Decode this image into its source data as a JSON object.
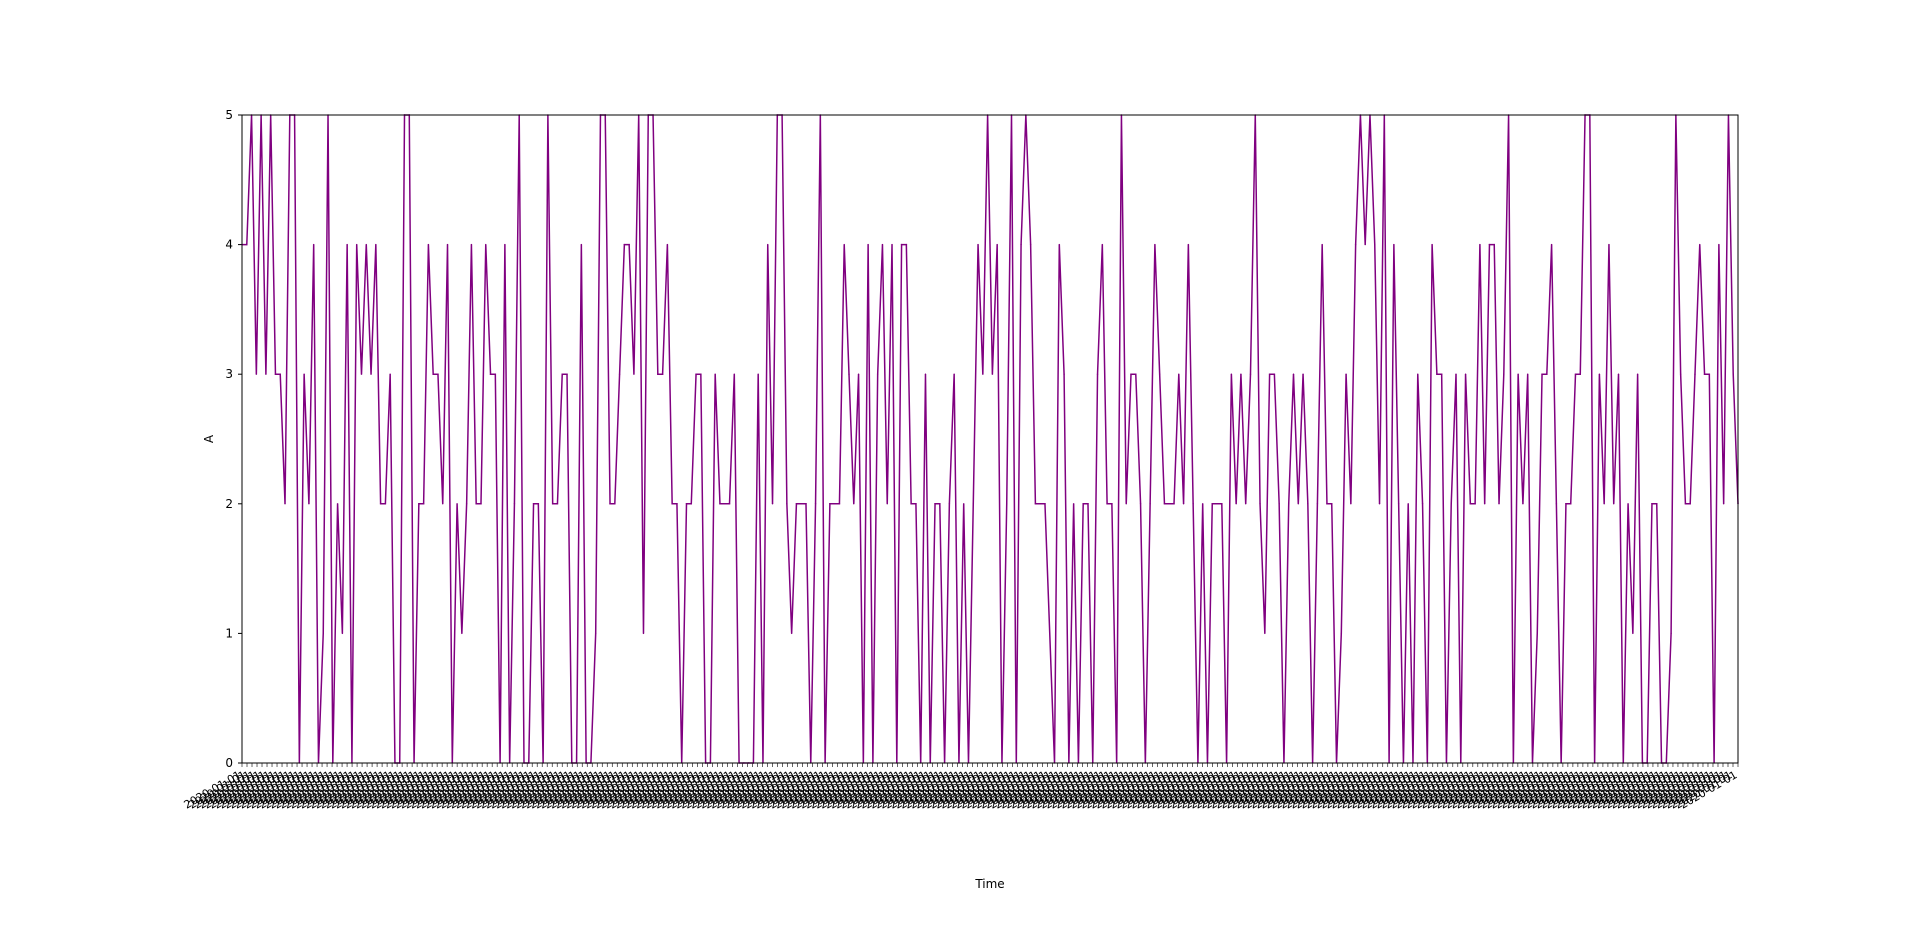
{
  "chart_data": {
    "type": "line",
    "title": "",
    "xlabel": "Time",
    "ylabel": "A",
    "ylim": [
      0,
      5
    ],
    "yticks": [
      "0",
      "1",
      "2",
      "3",
      "4",
      "5"
    ],
    "grid": false,
    "legend": "none",
    "line_color": "#800080",
    "x_tick_label": "2020-01-01",
    "x_tick_count": 300,
    "series": [
      {
        "values": [
          4,
          4,
          5,
          3,
          5,
          3,
          5,
          3,
          3,
          2,
          5,
          5,
          0,
          3,
          2,
          4,
          0,
          1,
          5,
          0,
          2,
          1,
          4,
          0,
          4,
          3,
          4,
          3,
          4,
          2,
          2,
          3,
          0,
          0,
          5,
          5,
          0,
          2,
          2,
          4,
          3,
          3,
          2,
          4,
          0,
          2,
          1,
          2,
          4,
          2,
          2,
          4,
          3,
          3,
          0,
          4,
          0,
          2,
          5,
          0,
          0,
          2,
          2,
          0,
          5,
          2,
          2,
          3,
          3,
          0,
          0,
          4,
          0,
          0,
          1,
          5,
          5,
          2,
          2,
          3,
          4,
          4,
          3,
          5,
          1,
          5,
          5,
          3,
          3,
          4,
          2,
          2,
          0,
          2,
          2,
          3,
          3,
          0,
          0,
          3,
          2,
          2,
          2,
          3,
          0,
          0,
          0,
          0,
          3,
          0,
          4,
          2,
          5,
          5,
          2,
          1,
          2,
          2,
          2,
          0,
          2,
          5,
          0,
          2,
          2,
          2,
          4,
          3,
          2,
          3,
          0,
          4,
          0,
          3,
          4,
          2,
          4,
          0,
          4,
          4,
          2,
          2,
          0,
          3,
          0,
          2,
          2,
          0,
          2,
          3,
          0,
          2,
          0,
          2,
          4,
          3,
          5,
          3,
          4,
          0,
          2,
          5,
          0,
          4,
          5,
          4,
          2,
          2,
          2,
          1,
          0,
          4,
          3,
          0,
          2,
          0,
          2,
          2,
          0,
          3,
          4,
          2,
          2,
          0,
          5,
          2,
          3,
          3,
          2,
          0,
          2,
          4,
          3,
          2,
          2,
          2,
          3,
          2,
          4,
          2,
          0,
          2,
          0,
          2,
          2,
          2,
          0,
          3,
          2,
          3,
          2,
          3,
          5,
          2,
          1,
          3,
          3,
          2,
          0,
          2,
          3,
          2,
          3,
          2,
          0,
          2,
          4,
          2,
          2,
          0,
          1,
          3,
          2,
          4,
          5,
          4,
          5,
          4,
          2,
          5,
          0,
          4,
          2,
          0,
          2,
          0,
          3,
          2,
          0,
          4,
          3,
          3,
          0,
          2,
          3,
          0,
          3,
          2,
          2,
          4,
          2,
          4,
          4,
          2,
          3,
          5,
          0,
          3,
          2,
          3,
          0,
          1,
          3,
          3,
          4,
          2,
          0,
          2,
          2,
          3,
          3,
          5,
          5,
          0,
          3,
          2,
          4,
          2,
          3,
          0,
          2,
          1,
          3,
          0,
          0,
          2,
          2,
          0,
          0,
          1,
          5,
          3,
          2,
          2,
          3,
          4,
          3,
          3,
          0,
          4,
          2,
          5,
          3,
          2
        ]
      }
    ]
  }
}
